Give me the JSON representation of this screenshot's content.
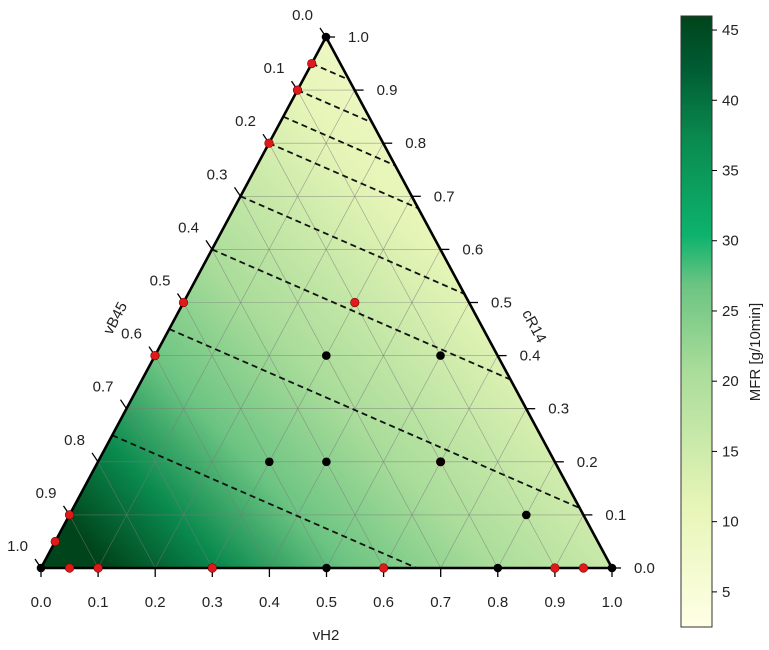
{
  "chart_data": {
    "type": "ternary-contour",
    "axes": {
      "bottom": {
        "label": "vH2",
        "ticks": [
          "0.0",
          "0.1",
          "0.2",
          "0.3",
          "0.4",
          "0.5",
          "0.6",
          "0.7",
          "0.8",
          "0.9",
          "1.0"
        ]
      },
      "left": {
        "label": "vB45",
        "ticks": [
          "0.0",
          "0.1",
          "0.2",
          "0.3",
          "0.4",
          "0.5",
          "0.6",
          "0.7",
          "0.8",
          "0.9",
          "1.0"
        ]
      },
      "right": {
        "label": "cR14",
        "ticks": [
          "0.0",
          "0.1",
          "0.2",
          "0.3",
          "0.4",
          "0.5",
          "0.6",
          "0.7",
          "0.8",
          "0.9",
          "1.0"
        ]
      }
    },
    "grid": true,
    "colormap": [
      "#ffffe5",
      "#e6f5b7",
      "#a9dc9a",
      "#6cc482",
      "#0db36d",
      "#0a8a4e",
      "#005a32",
      "#00441b"
    ],
    "colorbar": {
      "label": "MFR  [g/10min]",
      "ticks": [
        "5",
        "10",
        "15",
        "20",
        "25",
        "30",
        "35",
        "40",
        "45"
      ],
      "range": [
        2.5,
        46
      ]
    },
    "contour_levels_vB45": [
      0.25,
      0.45,
      0.6,
      0.7,
      0.8,
      0.85,
      0.9,
      0.95
    ],
    "design_points_black": [
      {
        "vH2": 0.0,
        "vB45": 0.0
      },
      {
        "vH2": 0.0,
        "vB45": 1.0
      },
      {
        "vH2": 1.0,
        "vB45": 0.0
      },
      {
        "vH2": 0.3,
        "vB45": 0.2
      },
      {
        "vH2": 0.5,
        "vB45": 0.0
      },
      {
        "vH2": 0.3,
        "vB45": 0.4
      },
      {
        "vH2": 0.4,
        "vB45": 0.2
      },
      {
        "vH2": 0.5,
        "vB45": 0.4
      },
      {
        "vH2": 0.6,
        "vB45": 0.2
      },
      {
        "vH2": 0.8,
        "vB45": 0.0
      },
      {
        "vH2": 0.8,
        "vB45": 0.1
      }
    ],
    "design_points_red": [
      {
        "vH2": 0.0,
        "vB45": 0.95
      },
      {
        "vH2": 0.0,
        "vB45": 0.9
      },
      {
        "vH2": 0.0,
        "vB45": 0.8
      },
      {
        "vH2": 0.0,
        "vB45": 0.5
      },
      {
        "vH2": 0.0,
        "vB45": 0.4
      },
      {
        "vH2": 0.0,
        "vB45": 0.1
      },
      {
        "vH2": 0.0,
        "vB45": 0.05
      },
      {
        "vH2": 0.9,
        "vB45": 0.0
      },
      {
        "vH2": 0.95,
        "vB45": 0.0
      },
      {
        "vH2": 0.05,
        "vB45": 0.0
      },
      {
        "vH2": 0.1,
        "vB45": 0.0
      },
      {
        "vH2": 0.6,
        "vB45": 0.0
      },
      {
        "vH2": 0.6,
        "vB45": 0.2
      },
      {
        "vH2": 0.3,
        "vB45": 0.0
      },
      {
        "vH2": 0.3,
        "vB45": 0.5
      }
    ]
  }
}
